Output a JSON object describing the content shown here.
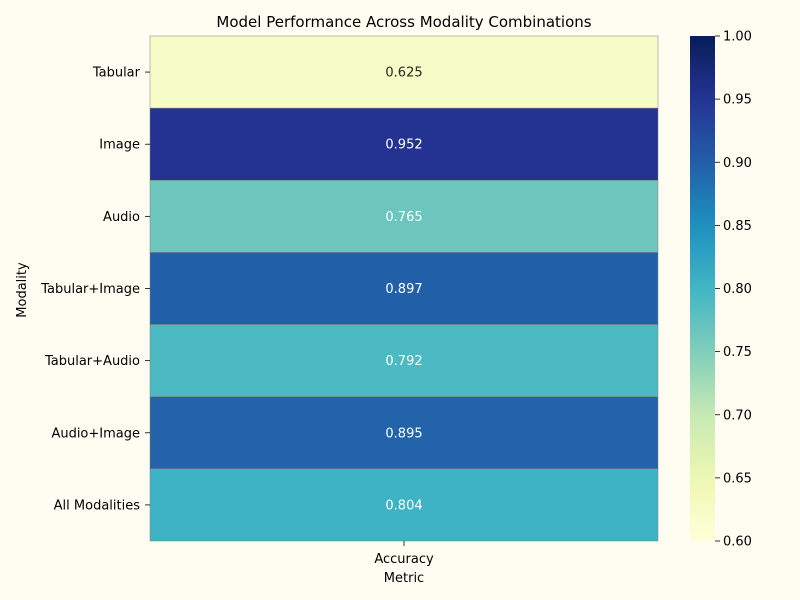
{
  "chart_data": {
    "type": "heatmap",
    "title": "Model Performance Across Modality Combinations",
    "xlabel": "Metric",
    "ylabel": "Modality",
    "columns": [
      "Accuracy"
    ],
    "rows": [
      "Tabular",
      "Image",
      "Audio",
      "Tabular+Image",
      "Tabular+Audio",
      "Audio+Image",
      "All Modalities"
    ],
    "values": [
      [
        0.625
      ],
      [
        0.952
      ],
      [
        0.765
      ],
      [
        0.897
      ],
      [
        0.792
      ],
      [
        0.895
      ],
      [
        0.804
      ]
    ],
    "value_labels": [
      "0.625",
      "0.952",
      "0.765",
      "0.897",
      "0.792",
      "0.895",
      "0.804"
    ],
    "colormap": "YlGnBu",
    "vmin": 0.6,
    "vmax": 1.0,
    "colorbar_ticks": [
      "0.60",
      "0.65",
      "0.70",
      "0.75",
      "0.80",
      "0.85",
      "0.90",
      "0.95",
      "1.00"
    ],
    "colors": {
      "background": "#fffdf2",
      "cell_border": "#808080",
      "text_dark": "#262626",
      "text_light": "#ffffff"
    }
  }
}
